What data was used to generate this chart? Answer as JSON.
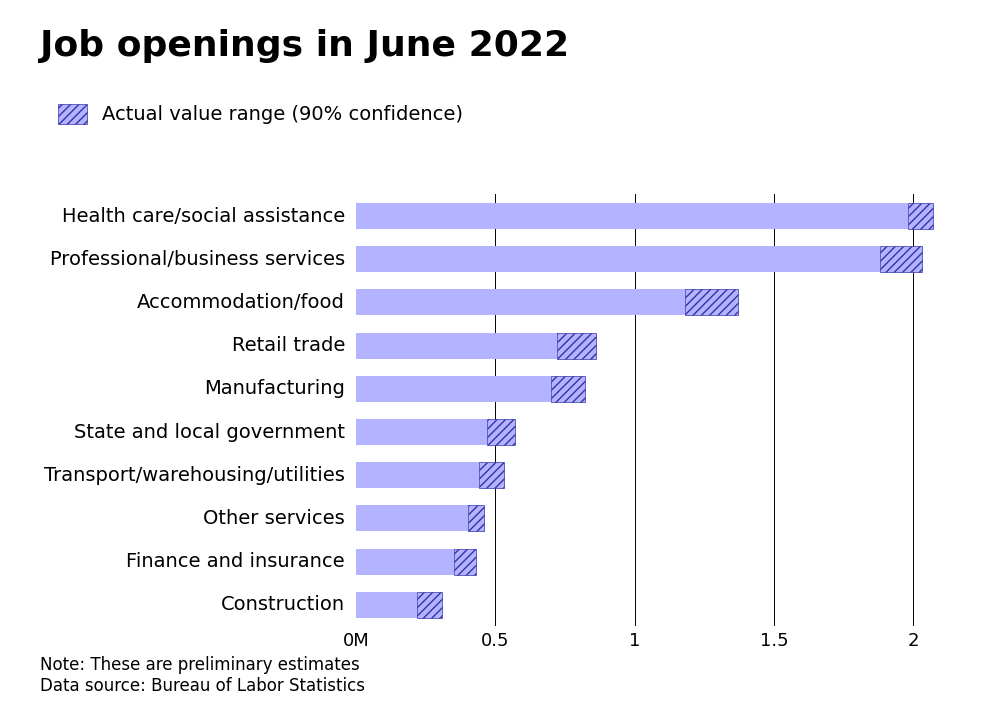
{
  "title": "Job openings in June 2022",
  "legend_label": "Actual value range (90% confidence)",
  "note": "Note: These are preliminary estimates",
  "source": "Data source: Bureau of Labor Statistics",
  "categories": [
    "Health care/social assistance",
    "Professional/business services",
    "Accommodation/food",
    "Retail trade",
    "Manufacturing",
    "State and local government",
    "Transport/warehousing/utilities",
    "Other services",
    "Finance and insurance",
    "Construction"
  ],
  "bar_values": [
    2.07,
    2.03,
    1.37,
    0.86,
    0.82,
    0.57,
    0.53,
    0.46,
    0.43,
    0.31
  ],
  "ci_low": [
    1.98,
    1.88,
    1.18,
    0.72,
    0.7,
    0.47,
    0.44,
    0.4,
    0.35,
    0.22
  ],
  "ci_high": [
    2.07,
    2.03,
    1.37,
    0.86,
    0.82,
    0.57,
    0.53,
    0.46,
    0.43,
    0.31
  ],
  "bar_color": "#b3b3ff",
  "hatch_color": "#3333aa",
  "background_color": "#ffffff",
  "title_fontsize": 26,
  "label_fontsize": 14,
  "tick_fontsize": 13,
  "note_fontsize": 12,
  "xlim": [
    0,
    2.25
  ],
  "xticks": [
    0,
    0.5,
    1.0,
    1.5,
    2.0
  ],
  "xtick_labels": [
    "0M",
    "0.5",
    "1",
    "1.5",
    "2"
  ]
}
